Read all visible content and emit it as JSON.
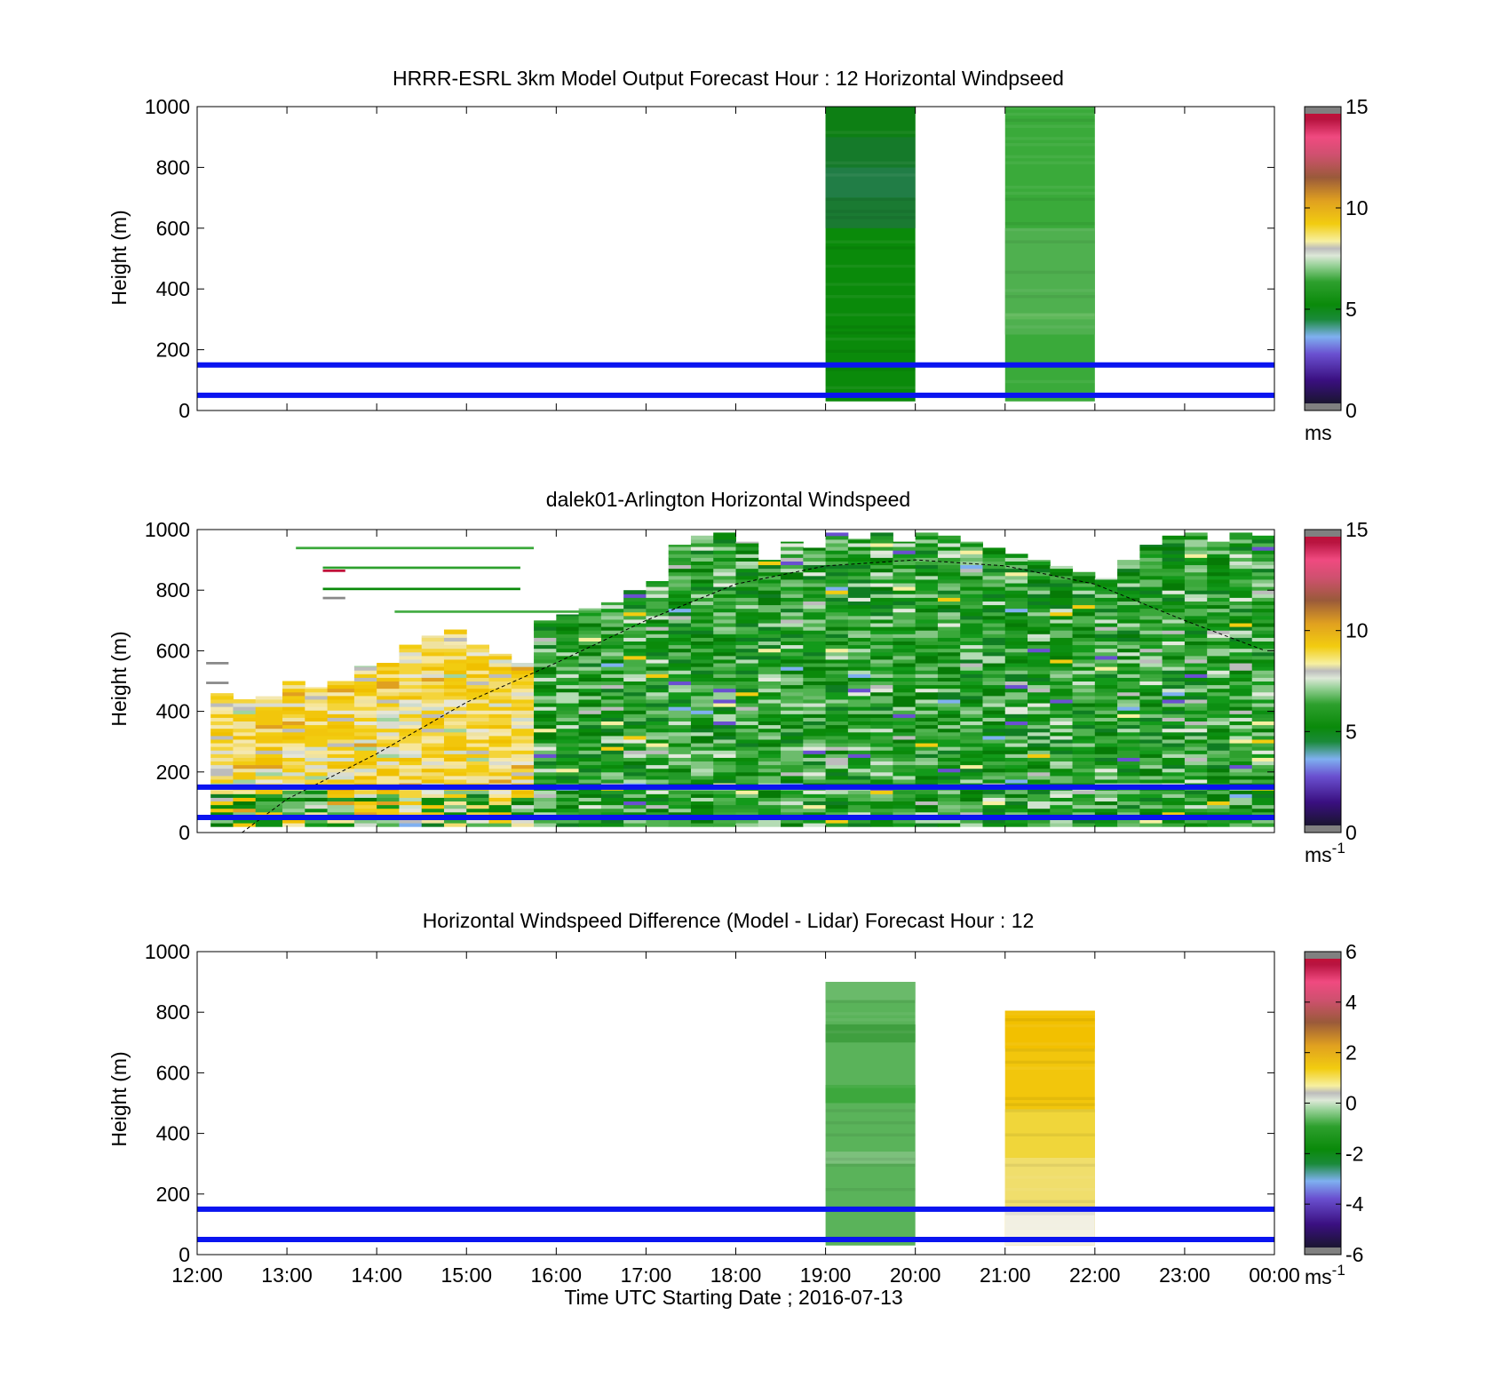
{
  "chart_data": [
    {
      "type": "heatmap",
      "title": "HRRR-ESRL 3km Model Output   Forecast Hour : 12 Horizontal Windpseed",
      "ylabel": "Height (m)",
      "xlabel": "",
      "xlim": [
        12,
        24
      ],
      "ylim": [
        0,
        1000
      ],
      "x_ticks": [
        12,
        13,
        14,
        15,
        16,
        17,
        18,
        19,
        20,
        21,
        22,
        23,
        24
      ],
      "y_ticks": [
        0,
        200,
        400,
        600,
        800,
        1000
      ],
      "y_tick_labels": [
        "0",
        "200",
        "400",
        "600",
        "800",
        "1000"
      ],
      "reference_lines_m": [
        50,
        150
      ],
      "colorbar": {
        "min": 0,
        "max": 15,
        "ticks": [
          0,
          5,
          10,
          15
        ],
        "tick_labels": [
          "0",
          "5",
          "10",
          "15"
        ],
        "unit": "ms",
        "unit_sup": ""
      },
      "columns": [
        {
          "t0": 19,
          "t1": 20,
          "bottom": 30,
          "top": 1000,
          "bands": [
            [
              0,
              1000,
              "#0a8a0a"
            ],
            [
              600,
              700,
              "#1a7a32"
            ],
            [
              700,
              800,
              "#217d46"
            ],
            [
              800,
              900,
              "#157a2a"
            ],
            [
              900,
              1000,
              "#0d7f14"
            ]
          ]
        },
        {
          "t0": 21,
          "t1": 22,
          "bottom": 30,
          "top": 1000,
          "bands": [
            [
              0,
              1000,
              "#3aaa3a"
            ],
            [
              250,
              600,
              "#4fb04f"
            ],
            [
              300,
              320,
              "#5fb85a"
            ]
          ]
        }
      ]
    },
    {
      "type": "heatmap",
      "title": "dalek01-Arlington  Horizontal Windspeed",
      "ylabel": "Height (m)",
      "xlabel": "",
      "xlim": [
        12,
        24
      ],
      "ylim": [
        0,
        1000
      ],
      "x_ticks": [
        12,
        13,
        14,
        15,
        16,
        17,
        18,
        19,
        20,
        21,
        22,
        23,
        24
      ],
      "y_ticks": [
        0,
        200,
        400,
        600,
        800,
        1000
      ],
      "y_tick_labels": [
        "0",
        "200",
        "400",
        "600",
        "800",
        "1000"
      ],
      "reference_lines_m": [
        50,
        150
      ],
      "colorbar": {
        "min": 0,
        "max": 15,
        "ticks": [
          0,
          5,
          10,
          15
        ],
        "tick_labels": [
          "0",
          "5",
          "10",
          "15"
        ],
        "unit": "ms",
        "unit_sup": "-1"
      },
      "boundary_layer_curve": {
        "t": [
          12.5,
          13,
          14,
          15,
          16,
          17,
          18,
          19,
          20,
          21,
          22,
          23,
          23.9
        ],
        "h": [
          0,
          110,
          260,
          430,
          560,
          700,
          820,
          880,
          900,
          880,
          820,
          700,
          600
        ]
      },
      "profile_times": [
        12.15,
        12.4,
        12.65,
        12.95,
        13.2,
        13.45,
        13.75,
        14.0,
        14.25,
        14.5,
        14.75,
        15.0,
        15.25,
        15.5,
        15.75,
        16.0,
        16.25,
        16.5,
        16.75,
        17.0,
        17.25,
        17.5,
        17.75,
        18.0,
        18.25,
        18.5,
        18.75,
        19.0,
        19.25,
        19.5,
        19.75,
        20.0,
        20.25,
        20.5,
        20.75,
        21.0,
        21.25,
        21.5,
        21.75,
        22.0,
        22.25,
        22.5,
        22.75,
        23.0,
        23.25,
        23.5,
        23.75
      ],
      "profile_tops_m": [
        460,
        440,
        450,
        500,
        480,
        500,
        550,
        560,
        620,
        650,
        670,
        620,
        590,
        560,
        700,
        720,
        740,
        760,
        800,
        830,
        950,
        980,
        990,
        960,
        900,
        960,
        940,
        990,
        970,
        990,
        960,
        990,
        980,
        960,
        940,
        920,
        900,
        880,
        860,
        840,
        900,
        950,
        980,
        990,
        960,
        990,
        980
      ]
    },
    {
      "type": "heatmap",
      "title": "Horizontal Windspeed Difference (Model - Lidar) Forecast Hour : 12",
      "ylabel": "Height (m)",
      "xlabel": "Time UTC  Starting Date ; 2016-07-13",
      "xlim": [
        12,
        24
      ],
      "ylim": [
        0,
        1000
      ],
      "x_ticks": [
        12,
        13,
        14,
        15,
        16,
        17,
        18,
        19,
        20,
        21,
        22,
        23,
        24
      ],
      "x_tick_labels": [
        "12:00",
        "13:00",
        "14:00",
        "15:00",
        "16:00",
        "17:00",
        "18:00",
        "19:00",
        "20:00",
        "21:00",
        "22:00",
        "23:00",
        "00:00"
      ],
      "y_ticks": [
        0,
        200,
        400,
        600,
        800,
        1000
      ],
      "y_tick_labels": [
        "0",
        "200",
        "400",
        "600",
        "800",
        "1000"
      ],
      "reference_lines_m": [
        50,
        150
      ],
      "colorbar": {
        "min": -6,
        "max": 6,
        "ticks": [
          -6,
          -4,
          -2,
          0,
          2,
          4,
          6
        ],
        "tick_labels": [
          "-6",
          "-4",
          "-2",
          "0",
          "2",
          "4",
          "6"
        ],
        "unit": "ms",
        "unit_sup": "-1"
      },
      "columns": [
        {
          "t0": 19,
          "t1": 20,
          "bottom": 30,
          "top": 900,
          "bands": [
            [
              0,
              900,
              "#5ab35a"
            ],
            [
              700,
              760,
              "#3f9f3f"
            ],
            [
              500,
              560,
              "#3da83d"
            ],
            [
              300,
              340,
              "#7cc07c"
            ],
            [
              840,
              900,
              "#6aba6a"
            ]
          ]
        },
        {
          "t0": 21,
          "t1": 22,
          "bottom": 30,
          "top": 805,
          "bands": [
            [
              0,
              805,
              "#f2c60c"
            ],
            [
              0,
              150,
              "#f2f0e2"
            ],
            [
              150,
              320,
              "#f0de6c"
            ],
            [
              320,
              480,
              "#f0d63a"
            ],
            [
              680,
              805,
              "#f2c000"
            ]
          ]
        }
      ]
    }
  ]
}
